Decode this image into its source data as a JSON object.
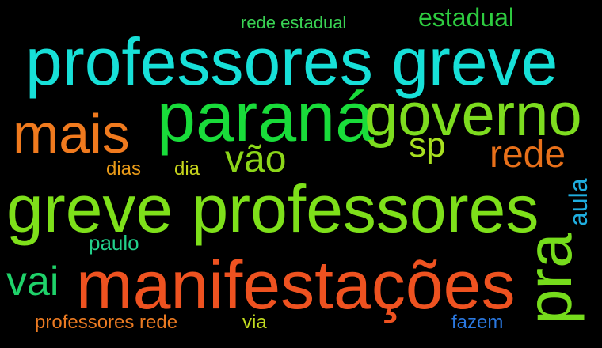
{
  "words": [
    {
      "key": "rede_estadual",
      "text": "rede estadual",
      "color": "#39d353"
    },
    {
      "key": "estadual",
      "text": "estadual",
      "color": "#2ecc40"
    },
    {
      "key": "professores_greve",
      "text": "professores greve",
      "color": "#17e0d8"
    },
    {
      "key": "mais",
      "text": "mais",
      "color": "#f07a1e"
    },
    {
      "key": "parana",
      "text": "paraná",
      "color": "#19dc3a"
    },
    {
      "key": "governo",
      "text": "governo",
      "color": "#7ddc1f"
    },
    {
      "key": "sp",
      "text": "sp",
      "color": "#a8e020"
    },
    {
      "key": "vao",
      "text": "vão",
      "color": "#8cd619"
    },
    {
      "key": "rede",
      "text": "rede",
      "color": "#e8701a"
    },
    {
      "key": "dias",
      "text": "dias",
      "color": "#e89a18"
    },
    {
      "key": "dia",
      "text": "dia",
      "color": "#c6d41c"
    },
    {
      "key": "aula",
      "text": "aula",
      "color": "#1faee0"
    },
    {
      "key": "greve_professores",
      "text": "greve professores",
      "color": "#7ee01a"
    },
    {
      "key": "paulo",
      "text": "paulo",
      "color": "#22cf8a"
    },
    {
      "key": "pra",
      "text": "pra",
      "color": "#76dc1c"
    },
    {
      "key": "vai",
      "text": "vai",
      "color": "#1fd26a"
    },
    {
      "key": "manifestacoes",
      "text": "manifestações",
      "color": "#ee5220"
    },
    {
      "key": "professores_rede",
      "text": "professores rede",
      "color": "#ea7a22"
    },
    {
      "key": "via",
      "text": "via",
      "color": "#c3dc20"
    },
    {
      "key": "fazem",
      "text": "fazem",
      "color": "#2a78e0"
    }
  ]
}
